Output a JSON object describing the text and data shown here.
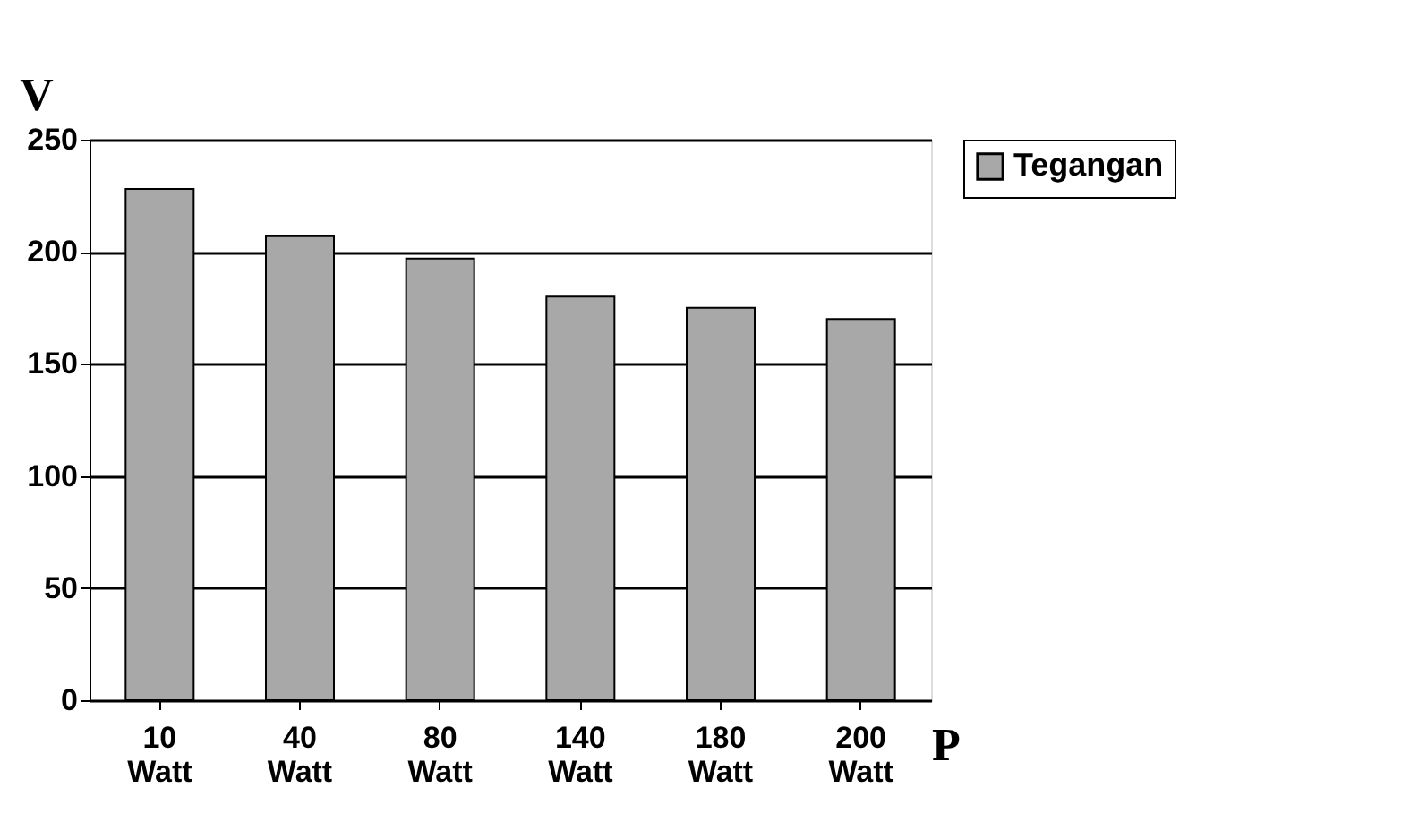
{
  "chart_data": {
    "type": "bar",
    "ylabel": "V",
    "xlabel": "P",
    "categories": [
      "10 Watt",
      "40 Watt",
      "80 Watt",
      "140 Watt",
      "180 Watt",
      "200 Watt"
    ],
    "series": [
      {
        "name": "Tegangan",
        "color": "#a8a8a8",
        "values": [
          228,
          207,
          197,
          180,
          175,
          170
        ]
      }
    ],
    "ylim": [
      0,
      250
    ],
    "yticks": [
      0,
      50,
      100,
      150,
      200,
      250
    ],
    "grid": "y",
    "legend": "right"
  }
}
